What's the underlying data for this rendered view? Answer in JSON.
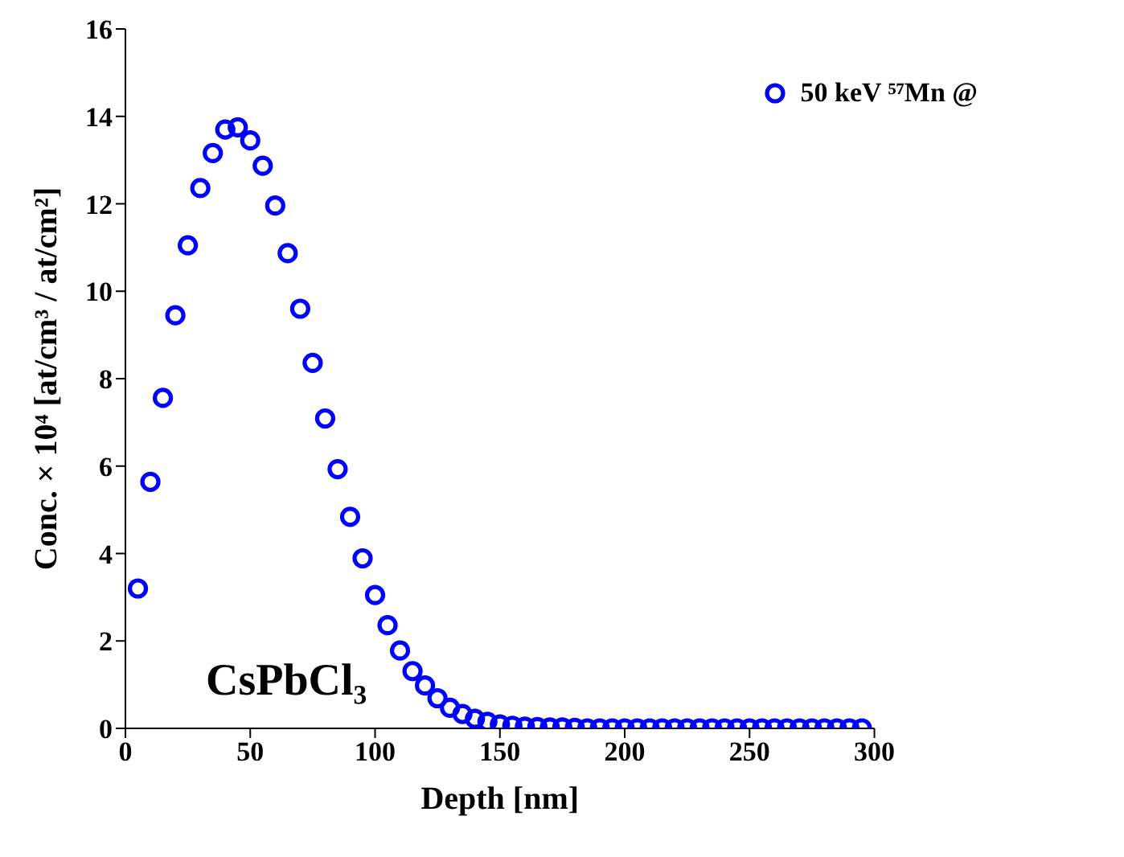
{
  "chart_data": {
    "type": "scatter",
    "xlabel": "Depth [nm]",
    "ylabel": "Conc. × 10⁴ [at/cm³ / at/cm²]",
    "annotations": [
      "CsPbCl₃"
    ],
    "x": [
      5,
      10,
      15,
      20,
      25,
      30,
      35,
      40,
      45,
      50,
      55,
      60,
      65,
      70,
      75,
      80,
      85,
      90,
      95,
      100,
      105,
      110,
      115,
      120,
      125,
      130,
      135,
      140,
      145,
      150,
      155,
      160,
      165,
      170,
      175,
      180,
      185,
      190,
      195,
      200,
      205,
      210,
      215,
      220,
      225,
      230,
      235,
      240,
      245,
      250,
      255,
      260,
      265,
      270,
      275,
      280,
      285,
      290,
      295
    ],
    "series": [
      {
        "name": "50 keV ⁵⁷Mn  @",
        "color": "#0000ff",
        "values": [
          3.2,
          5.64,
          7.56,
          9.45,
          11.05,
          12.36,
          13.16,
          13.7,
          13.75,
          13.45,
          12.87,
          11.96,
          10.87,
          9.6,
          8.36,
          7.09,
          5.93,
          4.84,
          3.89,
          3.05,
          2.36,
          1.78,
          1.31,
          0.98,
          0.69,
          0.47,
          0.33,
          0.22,
          0.15,
          0.09,
          0.06,
          0.04,
          0.03,
          0.02,
          0.02,
          0.01,
          0,
          0,
          0,
          0,
          0,
          0,
          0,
          0,
          0,
          0,
          0,
          0,
          0,
          0,
          0,
          0,
          0,
          0,
          0,
          0,
          0,
          0,
          0
        ]
      }
    ],
    "xlim": [
      0,
      300
    ],
    "xticks": [
      0,
      50,
      100,
      150,
      200,
      250,
      300
    ],
    "ylim": [
      0,
      16
    ],
    "yticks": [
      0,
      2,
      4,
      6,
      8,
      10,
      12,
      14,
      16
    ],
    "grid": false,
    "legend": "top right",
    "marker": "circle"
  }
}
